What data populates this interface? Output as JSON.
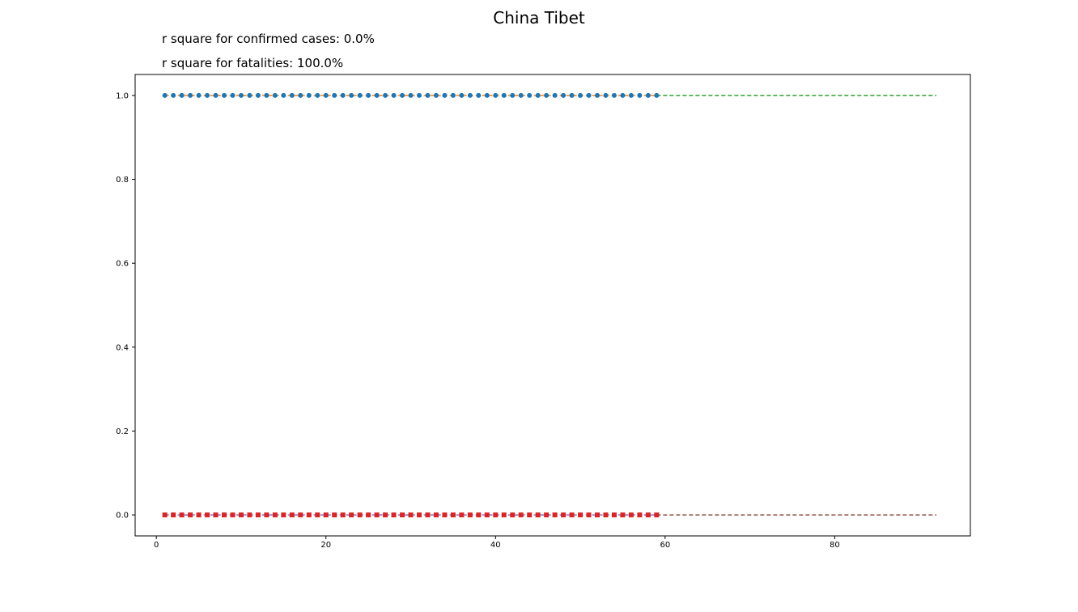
{
  "title": "China Tibet",
  "annotations": [
    "r square for confirmed cases: 0.0%",
    "r square for fatalities: 100.0%"
  ],
  "colors": {
    "confirmed_markers": "#1f77b4",
    "confirmed_fit": "#ff7f0e",
    "confirmed_prediction": "#2ca02c",
    "fatalities_markers": "#d62728",
    "fatalities_fit": "#9467bd",
    "fatalities_prediction": "#8c564b"
  },
  "chart_data": {
    "type": "line",
    "title": "China Tibet",
    "xlabel": "",
    "ylabel": "",
    "xlim": [
      -2.5,
      96
    ],
    "ylim": [
      -0.05,
      1.05
    ],
    "xticks": [
      0,
      20,
      40,
      60,
      80
    ],
    "yticks": [
      0.0,
      0.2,
      0.4,
      0.6,
      0.8,
      1.0
    ],
    "xtick_labels": [
      "0",
      "20",
      "40",
      "60",
      "80"
    ],
    "ytick_labels": [
      "0.0",
      "0.2",
      "0.4",
      "0.6",
      "0.8",
      "1.0"
    ],
    "grid": false,
    "series": [
      {
        "style": "markers-circle",
        "x_range": [
          1,
          59
        ],
        "value": 1.0,
        "color": "#1f77b4"
      },
      {
        "style": "dashed",
        "x_range": [
          1,
          59
        ],
        "value": 1.0,
        "color": "#ff7f0e"
      },
      {
        "style": "dashed",
        "x_range": [
          59,
          92
        ],
        "value": 1.0,
        "color": "#2ca02c"
      },
      {
        "style": "markers-square",
        "x_range": [
          1,
          59
        ],
        "value": 0.0,
        "color": "#d62728"
      },
      {
        "style": "dashed",
        "x_range": [
          1,
          59
        ],
        "value": 0.0,
        "color": "#9467bd"
      },
      {
        "style": "dashed",
        "x_range": [
          59,
          92
        ],
        "value": 0.0,
        "color": "#8c564b"
      }
    ]
  }
}
